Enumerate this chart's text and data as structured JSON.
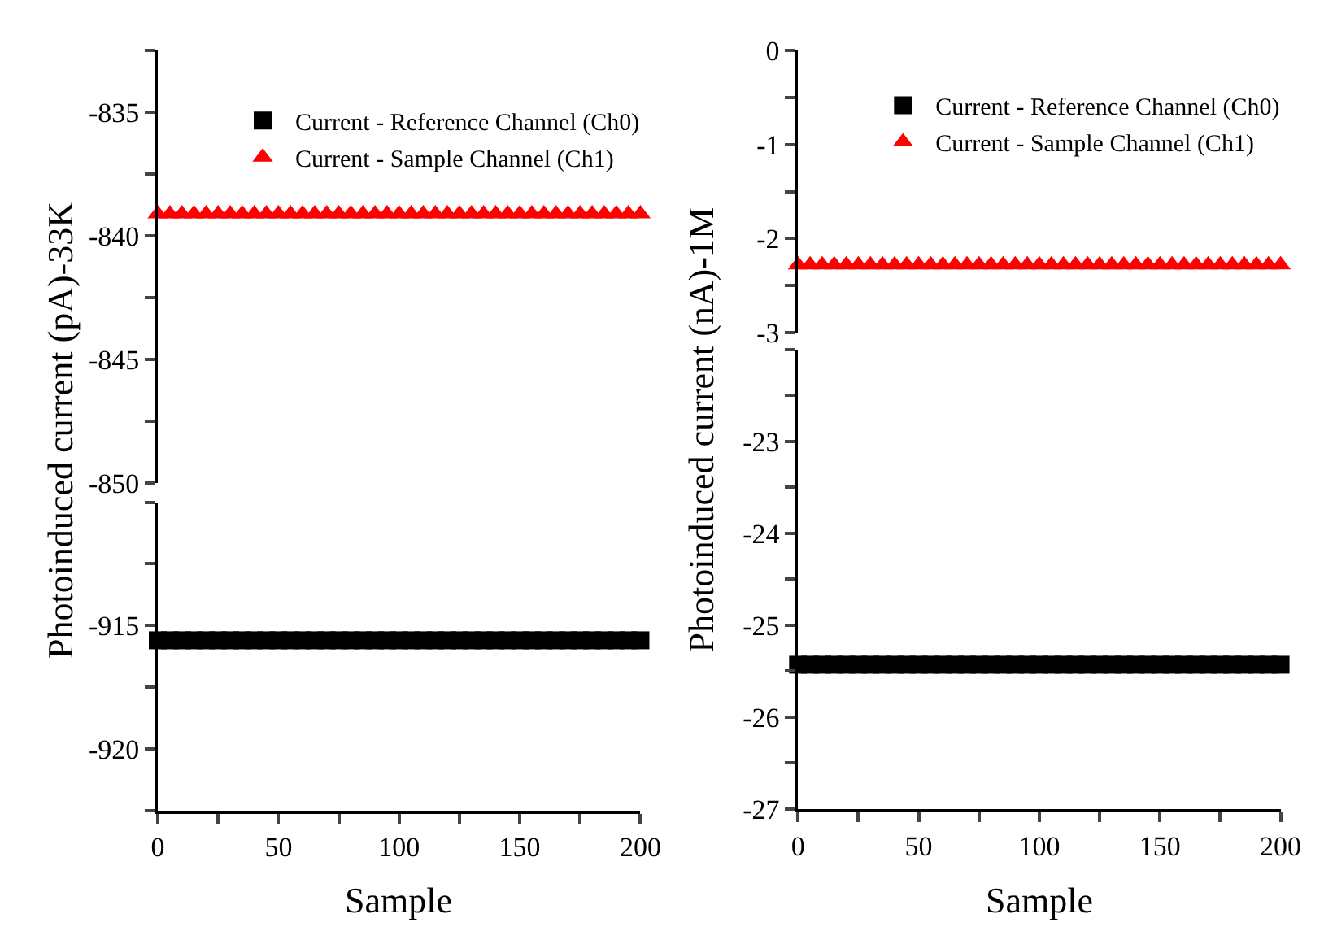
{
  "chart_data": [
    {
      "type": "scatter",
      "ylabel": "Photoinduced current (pA)-33K",
      "xlim": [
        0,
        200
      ],
      "ylim": [
        -850,
        -832.5
      ],
      "yticks": [
        -850,
        {
          "value": -847.5,
          "label": null
        },
        -845,
        {
          "value": -842.5,
          "label": null
        },
        -840,
        {
          "value": -837.5,
          "label": null
        },
        -835,
        {
          "value": -832.5,
          "label": null
        }
      ],
      "tick_labels": "y",
      "legend": "top",
      "x": [
        0,
        5,
        10,
        15,
        20,
        25,
        30,
        35,
        40,
        45,
        50,
        55,
        60,
        65,
        70,
        75,
        80,
        85,
        90,
        95,
        100,
        105,
        110,
        115,
        120,
        125,
        130,
        135,
        140,
        145,
        150,
        155,
        160,
        165,
        170,
        175,
        180,
        185,
        190,
        195,
        200
      ],
      "series": [
        {
          "name": "Current - Sample Channel (Ch1)",
          "color": "#ff0000",
          "marker": "triangle",
          "values": [
            -839.1,
            -839.1,
            -839.1,
            -839.1,
            -839.1,
            -839.1,
            -839.1,
            -839.1,
            -839.1,
            -839.1,
            -839.1,
            -839.1,
            -839.1,
            -839.1,
            -839.1,
            -839.1,
            -839.1,
            -839.1,
            -839.1,
            -839.1,
            -839.1,
            -839.1,
            -839.1,
            -839.1,
            -839.1,
            -839.1,
            -839.1,
            -839.1,
            -839.1,
            -839.1,
            -839.1,
            -839.1,
            -839.1,
            -839.1,
            -839.1,
            -839.1,
            -839.1,
            -839.1,
            -839.1,
            -839.1,
            -839.1
          ]
        }
      ]
    },
    {
      "type": "scatter",
      "xlabel": "Sample",
      "xlim": [
        0,
        200
      ],
      "xticks": [
        0,
        {
          "value": 25,
          "label": null
        },
        50,
        {
          "value": 75,
          "label": null
        },
        100,
        {
          "value": 125,
          "label": null
        },
        150,
        {
          "value": 175,
          "label": null
        },
        200
      ],
      "ylim": [
        -922.5,
        -910
      ],
      "yticks": [
        {
          "value": -922.5,
          "label": null
        },
        -920,
        {
          "value": -917.5,
          "label": null
        },
        -915,
        {
          "value": -912.5,
          "label": null
        },
        {
          "value": -910,
          "label": null
        }
      ],
      "x": [
        0,
        5,
        10,
        15,
        20,
        25,
        30,
        35,
        40,
        45,
        50,
        55,
        60,
        65,
        70,
        75,
        80,
        85,
        90,
        95,
        100,
        105,
        110,
        115,
        120,
        125,
        130,
        135,
        140,
        145,
        150,
        155,
        160,
        165,
        170,
        175,
        180,
        185,
        190,
        195,
        200
      ],
      "series": [
        {
          "name": "Current - Reference Channel (Ch0)",
          "color": "#000000",
          "marker": "square",
          "values": [
            -915.6,
            -915.6,
            -915.6,
            -915.6,
            -915.6,
            -915.6,
            -915.6,
            -915.6,
            -915.6,
            -915.6,
            -915.6,
            -915.6,
            -915.6,
            -915.6,
            -915.6,
            -915.6,
            -915.6,
            -915.6,
            -915.6,
            -915.6,
            -915.6,
            -915.6,
            -915.6,
            -915.6,
            -915.6,
            -915.6,
            -915.6,
            -915.6,
            -915.6,
            -915.6,
            -915.6,
            -915.6,
            -915.6,
            -915.6,
            -915.6,
            -915.6,
            -915.6,
            -915.6,
            -915.6,
            -915.6,
            -915.6
          ]
        }
      ]
    },
    {
      "type": "scatter",
      "ylabel": "Photoinduced current (nA)-1M",
      "xlim": [
        0,
        200
      ],
      "ylim": [
        -3,
        0
      ],
      "yticks": [
        -3,
        {
          "value": -2.5,
          "label": null
        },
        -2,
        {
          "value": -1.5,
          "label": null
        },
        -1,
        {
          "value": -0.5,
          "label": null
        },
        0
      ],
      "tick_labels": "y",
      "legend": "top",
      "x": [
        0,
        5,
        10,
        15,
        20,
        25,
        30,
        35,
        40,
        45,
        50,
        55,
        60,
        65,
        70,
        75,
        80,
        85,
        90,
        95,
        100,
        105,
        110,
        115,
        120,
        125,
        130,
        135,
        140,
        145,
        150,
        155,
        160,
        165,
        170,
        175,
        180,
        185,
        190,
        195,
        200
      ],
      "series": [
        {
          "name": "Current - Sample Channel (Ch1)",
          "color": "#ff0000",
          "marker": "triangle",
          "values": [
            -2.28,
            -2.28,
            -2.28,
            -2.28,
            -2.28,
            -2.28,
            -2.28,
            -2.28,
            -2.28,
            -2.28,
            -2.28,
            -2.28,
            -2.28,
            -2.28,
            -2.28,
            -2.28,
            -2.28,
            -2.28,
            -2.28,
            -2.28,
            -2.28,
            -2.28,
            -2.28,
            -2.28,
            -2.28,
            -2.28,
            -2.28,
            -2.28,
            -2.28,
            -2.28,
            -2.28,
            -2.28,
            -2.28,
            -2.28,
            -2.28,
            -2.28,
            -2.28,
            -2.28,
            -2.28,
            -2.28,
            -2.28
          ]
        }
      ]
    },
    {
      "type": "scatter",
      "xlabel": "Sample",
      "xlim": [
        0,
        200
      ],
      "xticks": [
        0,
        {
          "value": 25,
          "label": null
        },
        50,
        {
          "value": 75,
          "label": null
        },
        100,
        {
          "value": 125,
          "label": null
        },
        150,
        {
          "value": 175,
          "label": null
        },
        200
      ],
      "ylim": [
        -27,
        -22
      ],
      "yticks": [
        -27,
        {
          "value": -26.5,
          "label": null
        },
        -26,
        {
          "value": -25.5,
          "label": null
        },
        -25,
        {
          "value": -24.5,
          "label": null
        },
        -24,
        {
          "value": -23.5,
          "label": null
        },
        -23,
        {
          "value": -22.5,
          "label": null
        },
        {
          "value": -22,
          "label": null
        }
      ],
      "x": [
        0,
        5,
        10,
        15,
        20,
        25,
        30,
        35,
        40,
        45,
        50,
        55,
        60,
        65,
        70,
        75,
        80,
        85,
        90,
        95,
        100,
        105,
        110,
        115,
        120,
        125,
        130,
        135,
        140,
        145,
        150,
        155,
        160,
        165,
        170,
        175,
        180,
        185,
        190,
        195,
        200
      ],
      "series": [
        {
          "name": "Current - Reference Channel (Ch0)",
          "color": "#000000",
          "marker": "square",
          "values": [
            -25.43,
            -25.43,
            -25.43,
            -25.43,
            -25.43,
            -25.43,
            -25.43,
            -25.43,
            -25.43,
            -25.43,
            -25.43,
            -25.43,
            -25.43,
            -25.43,
            -25.43,
            -25.43,
            -25.43,
            -25.43,
            -25.43,
            -25.43,
            -25.43,
            -25.43,
            -25.43,
            -25.43,
            -25.43,
            -25.43,
            -25.43,
            -25.43,
            -25.43,
            -25.43,
            -25.43,
            -25.43,
            -25.43,
            -25.43,
            -25.43,
            -25.43,
            -25.43,
            -25.43,
            -25.43,
            -25.43,
            -25.43
          ]
        }
      ]
    }
  ]
}
